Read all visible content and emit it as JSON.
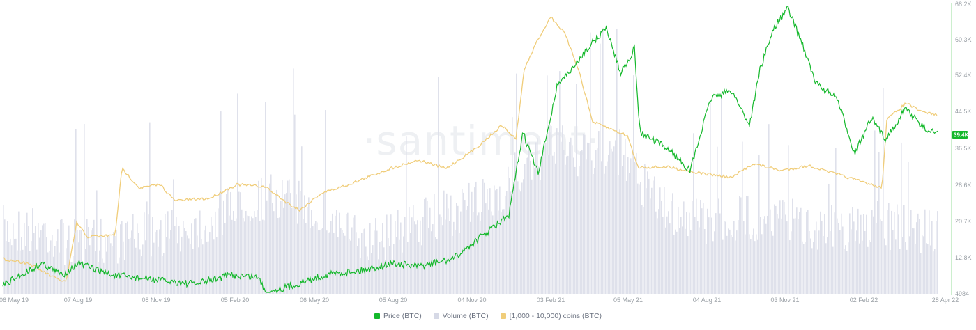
{
  "watermark": "·santiment·",
  "chart_data": {
    "type": "line",
    "x_tick_labels": [
      "06 May 19",
      "07 Aug 19",
      "08 Nov 19",
      "05 Feb 20",
      "06 May 20",
      "05 Aug 20",
      "04 Nov 20",
      "03 Feb 21",
      "05 May 21",
      "04 Aug 21",
      "03 Nov 21",
      "02 Feb 22",
      "28 Apr 22"
    ],
    "y_tick_labels": [
      "4984",
      "12.8K",
      "20.7K",
      "28.6K",
      "36.5K",
      "44.5K",
      "52.4K",
      "60.3K",
      "68.2K"
    ],
    "ylim": [
      4984,
      68200
    ],
    "current_value_label": "39.4K",
    "series": [
      {
        "name": "Price (BTC)",
        "type": "line",
        "color": "#14b82b",
        "x": [
          "06 May 19",
          "07 Aug 19",
          "08 Nov 19",
          "05 Feb 20",
          "06 May 20",
          "05 Aug 20",
          "04 Nov 20",
          "03 Feb 21",
          "05 May 21",
          "04 Aug 21",
          "03 Nov 21",
          "02 Feb 22",
          "28 Apr 22"
        ],
        "values": [
          6000,
          12000,
          8500,
          10000,
          8800,
          11700,
          14000,
          36000,
          55000,
          39000,
          62000,
          38000,
          39400
        ]
      },
      {
        "name": "Volume (BTC)",
        "type": "bar",
        "color": "#dfe1eb",
        "values": []
      },
      {
        "name": "[1,000 - 10,000) coins (BTC)",
        "type": "line",
        "color": "#f0cd7a",
        "values": []
      }
    ]
  }
}
